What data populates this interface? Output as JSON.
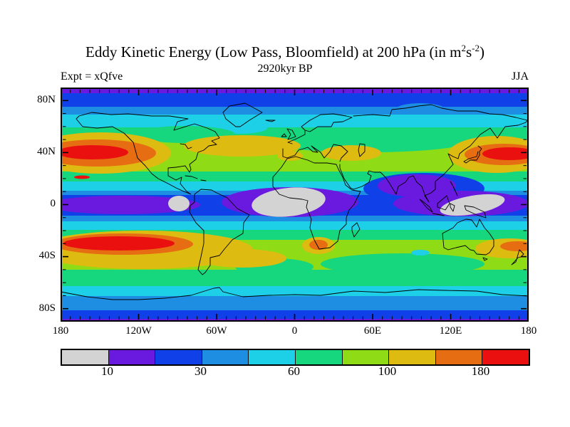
{
  "header": {
    "title_main": "Eddy Kinetic Energy (Low Pass, Bloomfield) at 200 hPa (in m",
    "title_sup1": "2",
    "title_unit_mid": "s",
    "title_sup2": "-2",
    "title_close": ")",
    "subtitle": "2920kyr BP",
    "experiment_label": "Expt = xQfve",
    "season_label": "JJA"
  },
  "axes": {
    "x_labels": [
      "180",
      "120W",
      "60W",
      "0",
      "60E",
      "120E",
      "180"
    ],
    "y_labels": [
      "80N",
      "40N",
      "0",
      "40S",
      "80S"
    ]
  },
  "colorbar": {
    "colors": [
      "#d3d3d3",
      "#6a1adf",
      "#1040e8",
      "#1e8ee2",
      "#1ecfe8",
      "#16d67e",
      "#8fdc16",
      "#ddbb10",
      "#e66d12",
      "#ea1010"
    ],
    "labels": [
      "10",
      "30",
      "60",
      "100",
      "180"
    ],
    "label_boundaries": [
      1,
      3,
      5,
      7,
      9
    ]
  },
  "palette": {
    "gray": "#d3d3d3",
    "purple": "#6a1adf",
    "blue": "#1040e8",
    "mblue": "#1e8ee2",
    "cyan": "#1ecfe8",
    "green": "#16d67e",
    "ygreen": "#8fdc16",
    "gold": "#ddbb10",
    "orange": "#e66d12",
    "red": "#ea1010"
  },
  "chart_data": {
    "type": "heatmap",
    "subtype": "filled-contour-world-map",
    "title": "Eddy Kinetic Energy (Low Pass, Bloomfield) at 200 hPa (in m2 s-2)",
    "subtitle": "2920kyr BP",
    "experiment": "xQfve",
    "season": "JJA",
    "projection": "equirectangular",
    "lon_range": [
      -180,
      180
    ],
    "lat_range": [
      -90,
      90
    ],
    "lon_ticks_labeled": [
      "180",
      "120W",
      "60W",
      "0",
      "60E",
      "120E",
      "180"
    ],
    "lat_ticks_labeled": [
      "80N",
      "40N",
      "0",
      "40S",
      "80S"
    ],
    "n_color_bands": 10,
    "labeled_contour_levels": [
      10,
      30,
      60,
      100,
      180
    ],
    "legend_position": "bottom",
    "grid": false,
    "features": [
      {
        "region": "North Pacific ~35-45N spanning the dateline (140E-130W)",
        "value": "maximum > 180"
      },
      {
        "region": "North Atlantic 35-50N (US east coast to Mediterranean)",
        "value": "band 100-180"
      },
      {
        "region": "Caspian / central Asia ~40N",
        "value": "local 100-180 patch"
      },
      {
        "region": "South Pacific ~35-45S (180-80W)",
        "value": "maximum > 180"
      },
      {
        "region": "southern Africa ~25-32S",
        "value": "local max 100-180"
      },
      {
        "region": "SW Pacific near New Zealand ~30-40S",
        "value": "local max 100-180"
      },
      {
        "region": "equatorial east Pacific near 95W",
        "value": "minimum < 10 (gray)"
      },
      {
        "region": "equatorial Atlantic / equatorial Africa",
        "value": "minimum < 10 (gray)"
      },
      {
        "region": "Maritime Continent / Indonesia",
        "value": "minimum < 10 (gray)"
      },
      {
        "region": "India / Bay of Bengal monsoon region",
        "value": "10-20 (purple)"
      },
      {
        "region": "Arctic (poleward of 80N) and Antarctic margins",
        "value": "10-30"
      },
      {
        "region": "midlatitude continents 50-60N",
        "value": "60-100"
      }
    ]
  }
}
